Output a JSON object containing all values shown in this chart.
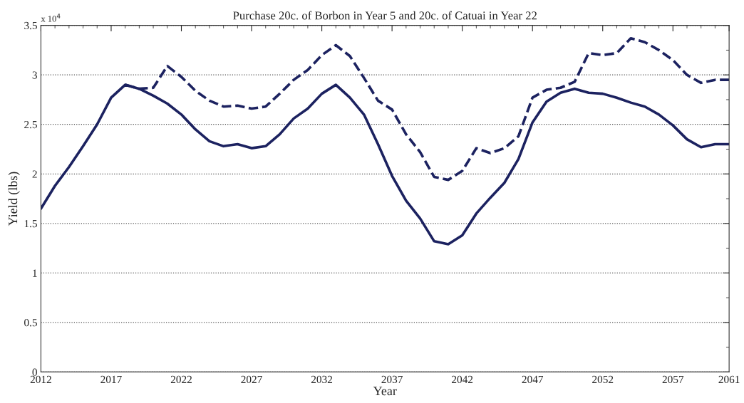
{
  "chart_data": {
    "type": "line",
    "title": "Purchase 20c. of Borbon in Year 5 and 20c. of Catuai in Year 22",
    "xlabel": "Year",
    "ylabel": "Yield (lbs)",
    "annotations": [
      "x 10$^{4}$"
    ],
    "series": [
      {
        "color": "#1c2260",
        "line_style": "solid",
        "x": [
          2012,
          2013,
          2014,
          2015,
          2016,
          2017,
          2018,
          2019,
          2020,
          2021,
          2022,
          2023,
          2024,
          2025,
          2026,
          2027,
          2028,
          2029,
          2030,
          2031,
          2032,
          2033,
          2034,
          2035,
          2036,
          2037,
          2038,
          2039,
          2040,
          2041,
          2042,
          2043,
          2044,
          2045,
          2046,
          2047,
          2048,
          2049,
          2050,
          2051,
          2052,
          2053,
          2054,
          2055,
          2056,
          2057,
          2058,
          2059,
          2060,
          2061
        ],
        "values": [
          1.65,
          1.88,
          2.07,
          2.28,
          2.5,
          2.77,
          2.9,
          2.86,
          2.79,
          2.71,
          2.6,
          2.45,
          2.33,
          2.28,
          2.3,
          2.26,
          2.28,
          2.4,
          2.56,
          2.66,
          2.81,
          2.9,
          2.77,
          2.6,
          2.3,
          1.98,
          1.73,
          1.55,
          1.32,
          1.29,
          1.38,
          1.6,
          1.76,
          1.91,
          2.15,
          2.52,
          2.73,
          2.82,
          2.86,
          2.82,
          2.81,
          2.77,
          2.72,
          2.68,
          2.6,
          2.49,
          2.35,
          2.27,
          2.3,
          2.3
        ]
      },
      {
        "color": "#1c2260",
        "line_style": "dashed",
        "x": [
          2018,
          2019,
          2020,
          2021,
          2022,
          2023,
          2024,
          2025,
          2026,
          2027,
          2028,
          2029,
          2030,
          2031,
          2032,
          2033,
          2034,
          2035,
          2036,
          2037,
          2038,
          2039,
          2040,
          2041,
          2042,
          2043,
          2044,
          2045,
          2046,
          2047,
          2048,
          2049,
          2050,
          2051,
          2052,
          2053,
          2054,
          2055,
          2056,
          2057,
          2058,
          2059,
          2060,
          2061
        ],
        "values": [
          2.9,
          2.86,
          2.87,
          3.09,
          2.98,
          2.84,
          2.74,
          2.68,
          2.69,
          2.66,
          2.68,
          2.81,
          2.95,
          3.05,
          3.2,
          3.3,
          3.19,
          2.97,
          2.74,
          2.65,
          2.4,
          2.22,
          1.97,
          1.94,
          2.03,
          2.26,
          2.21,
          2.26,
          2.38,
          2.77,
          2.85,
          2.87,
          2.93,
          3.22,
          3.2,
          3.22,
          3.37,
          3.33,
          3.25,
          3.15,
          3.0,
          2.92,
          2.95,
          2.95
        ]
      }
    ],
    "xlim": [
      2012,
      2061
    ],
    "xticks": [
      2012,
      2017,
      2022,
      2027,
      2032,
      2037,
      2042,
      2047,
      2052,
      2057,
      2061
    ],
    "ylim": [
      0,
      3.5
    ],
    "yticks": [
      0,
      0.5,
      1,
      1.5,
      2,
      2.5,
      3,
      3.5
    ],
    "grid": "y",
    "legend": false,
    "marker": "none"
  }
}
